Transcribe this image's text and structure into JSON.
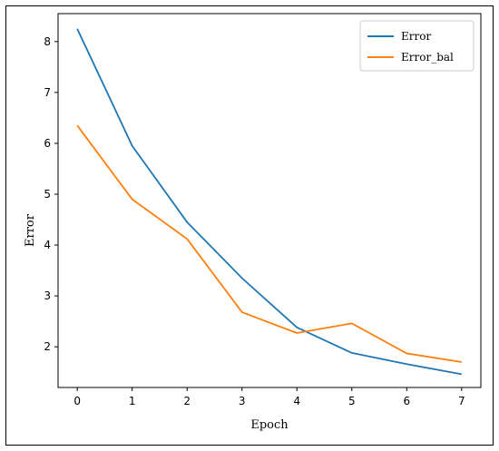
{
  "chart_data": {
    "type": "line",
    "title": "",
    "xlabel": "Epoch",
    "ylabel": "Error",
    "x": [
      0,
      1,
      2,
      3,
      4,
      5,
      6,
      7
    ],
    "xticks": [
      "0",
      "1",
      "2",
      "3",
      "4",
      "5",
      "6",
      "7"
    ],
    "yticks": [
      "2",
      "3",
      "4",
      "5",
      "6",
      "7",
      "8"
    ],
    "xlim": [
      -0.35,
      7.35
    ],
    "ylim": [
      1.2,
      8.55
    ],
    "grid": false,
    "legend_position": "top-right",
    "series": [
      {
        "name": "Error",
        "color": "#1f77b4",
        "values": [
          8.25,
          5.95,
          4.45,
          3.35,
          2.38,
          1.88,
          1.66,
          1.46
        ]
      },
      {
        "name": "Error_bal",
        "color": "#ff7f0e",
        "values": [
          6.35,
          4.9,
          4.12,
          2.68,
          2.27,
          2.46,
          1.87,
          1.7
        ]
      }
    ]
  }
}
